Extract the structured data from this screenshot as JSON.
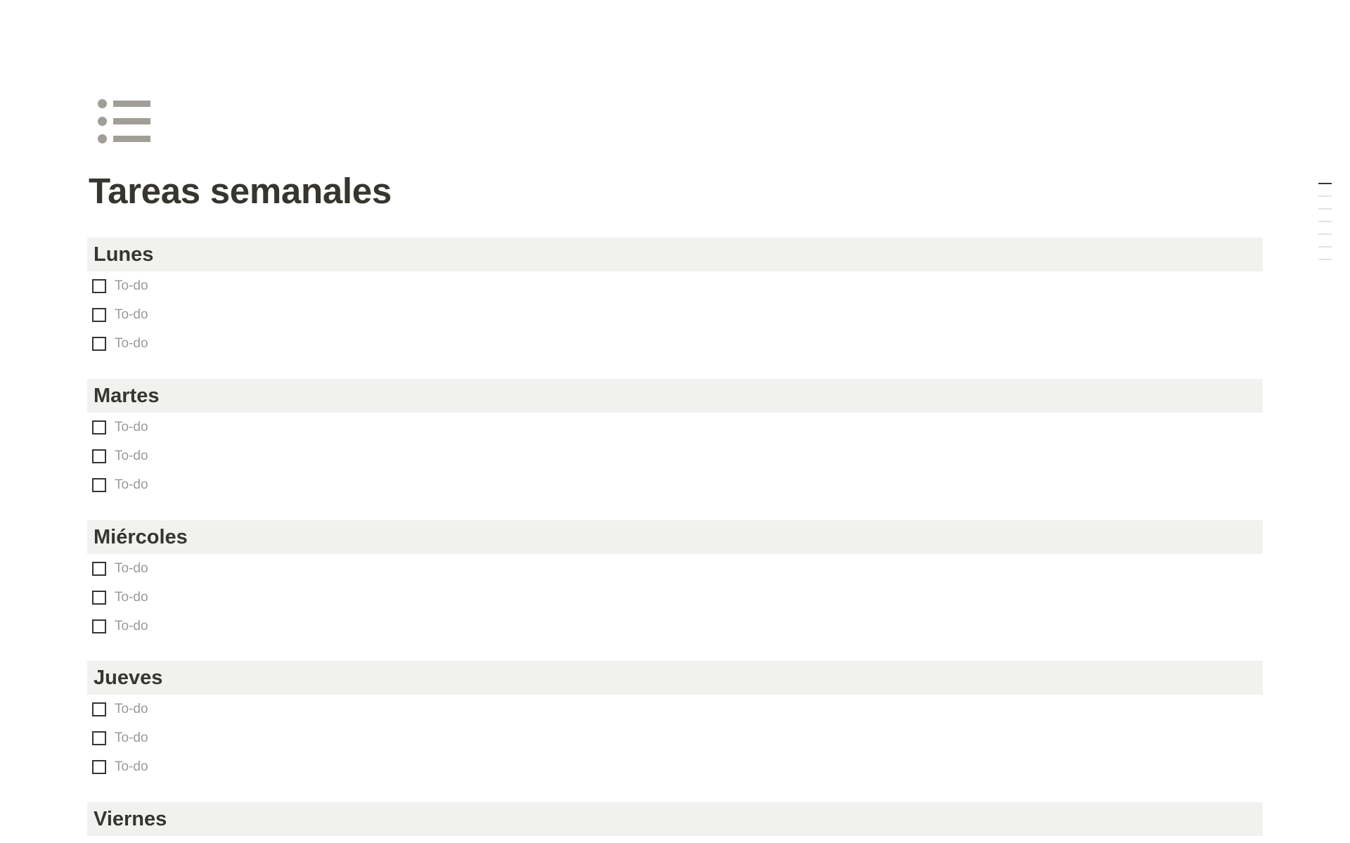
{
  "page": {
    "icon": "bulleted-list-icon",
    "title": "Tareas semanales"
  },
  "sections": [
    {
      "heading": "Lunes",
      "todos": [
        {
          "text": "To-do",
          "checked": false
        },
        {
          "text": "To-do",
          "checked": false
        },
        {
          "text": "To-do",
          "checked": false
        }
      ]
    },
    {
      "heading": "Martes",
      "todos": [
        {
          "text": "To-do",
          "checked": false
        },
        {
          "text": "To-do",
          "checked": false
        },
        {
          "text": "To-do",
          "checked": false
        }
      ]
    },
    {
      "heading": "Miércoles",
      "todos": [
        {
          "text": "To-do",
          "checked": false
        },
        {
          "text": "To-do",
          "checked": false
        },
        {
          "text": "To-do",
          "checked": false
        }
      ]
    },
    {
      "heading": "Jueves",
      "todos": [
        {
          "text": "To-do",
          "checked": false
        },
        {
          "text": "To-do",
          "checked": false
        },
        {
          "text": "To-do",
          "checked": false
        }
      ]
    },
    {
      "heading": "Viernes",
      "todos": []
    }
  ],
  "toc": {
    "count": 7,
    "active_index": 0
  },
  "colors": {
    "text": "#37352f",
    "placeholder": "#9b9a97",
    "heading_bg": "#f1f1ef",
    "icon": "#a19e97"
  }
}
